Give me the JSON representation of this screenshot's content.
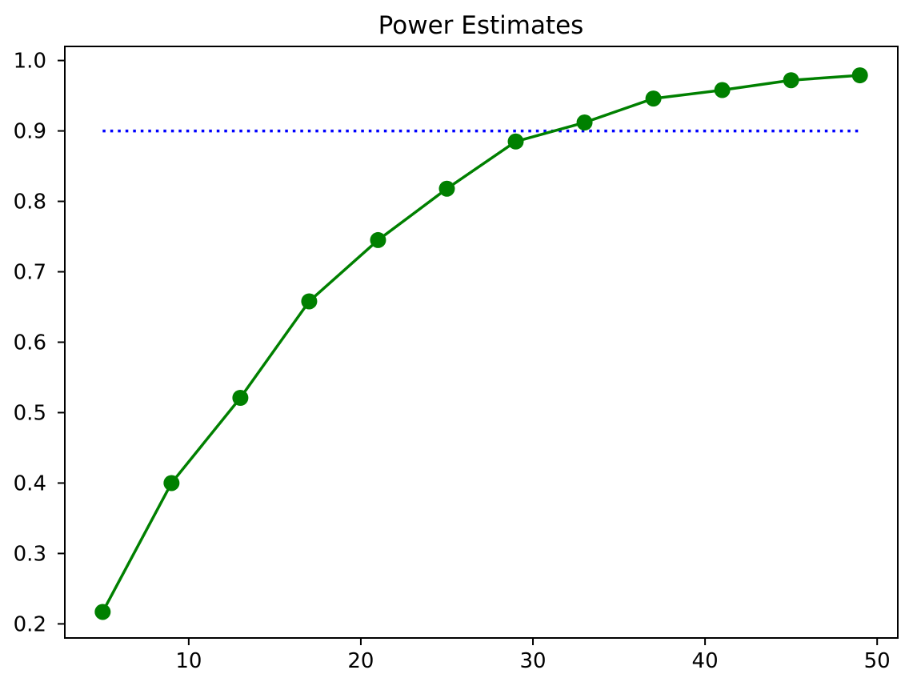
{
  "chart_data": {
    "type": "line",
    "title": "Power Estimates",
    "xlabel": "",
    "ylabel": "",
    "x": [
      5,
      9,
      13,
      17,
      21,
      25,
      29,
      33,
      37,
      41,
      45,
      49
    ],
    "series": [
      {
        "name": "power-curve",
        "color": "#008000",
        "marker": "circle",
        "marker_size": 20,
        "line_style": "solid",
        "values": [
          0.217,
          0.4,
          0.521,
          0.658,
          0.745,
          0.818,
          0.885,
          0.912,
          0.946,
          0.958,
          0.972,
          0.979
        ]
      }
    ],
    "reference_line": {
      "name": "target-power-line",
      "y": 0.9,
      "x_start": 5,
      "x_end": 49,
      "color": "#0000ff",
      "line_style": "dotted"
    },
    "xlim": [
      2.8,
      51.2
    ],
    "ylim": [
      0.18,
      1.02
    ],
    "xticks": {
      "values": [
        10,
        20,
        30,
        40,
        50
      ],
      "labels": [
        "10",
        "20",
        "30",
        "40",
        "50"
      ]
    },
    "yticks": {
      "values": [
        0.2,
        0.3,
        0.4,
        0.5,
        0.6,
        0.7,
        0.8,
        0.9,
        1.0
      ],
      "labels": [
        "0.2",
        "0.3",
        "0.4",
        "0.5",
        "0.6",
        "0.7",
        "0.8",
        "0.9",
        "1.0"
      ]
    },
    "grid": false,
    "legend": false,
    "background_color": "#ffffff",
    "axis_color": "#000000",
    "text_color": "#000000"
  }
}
